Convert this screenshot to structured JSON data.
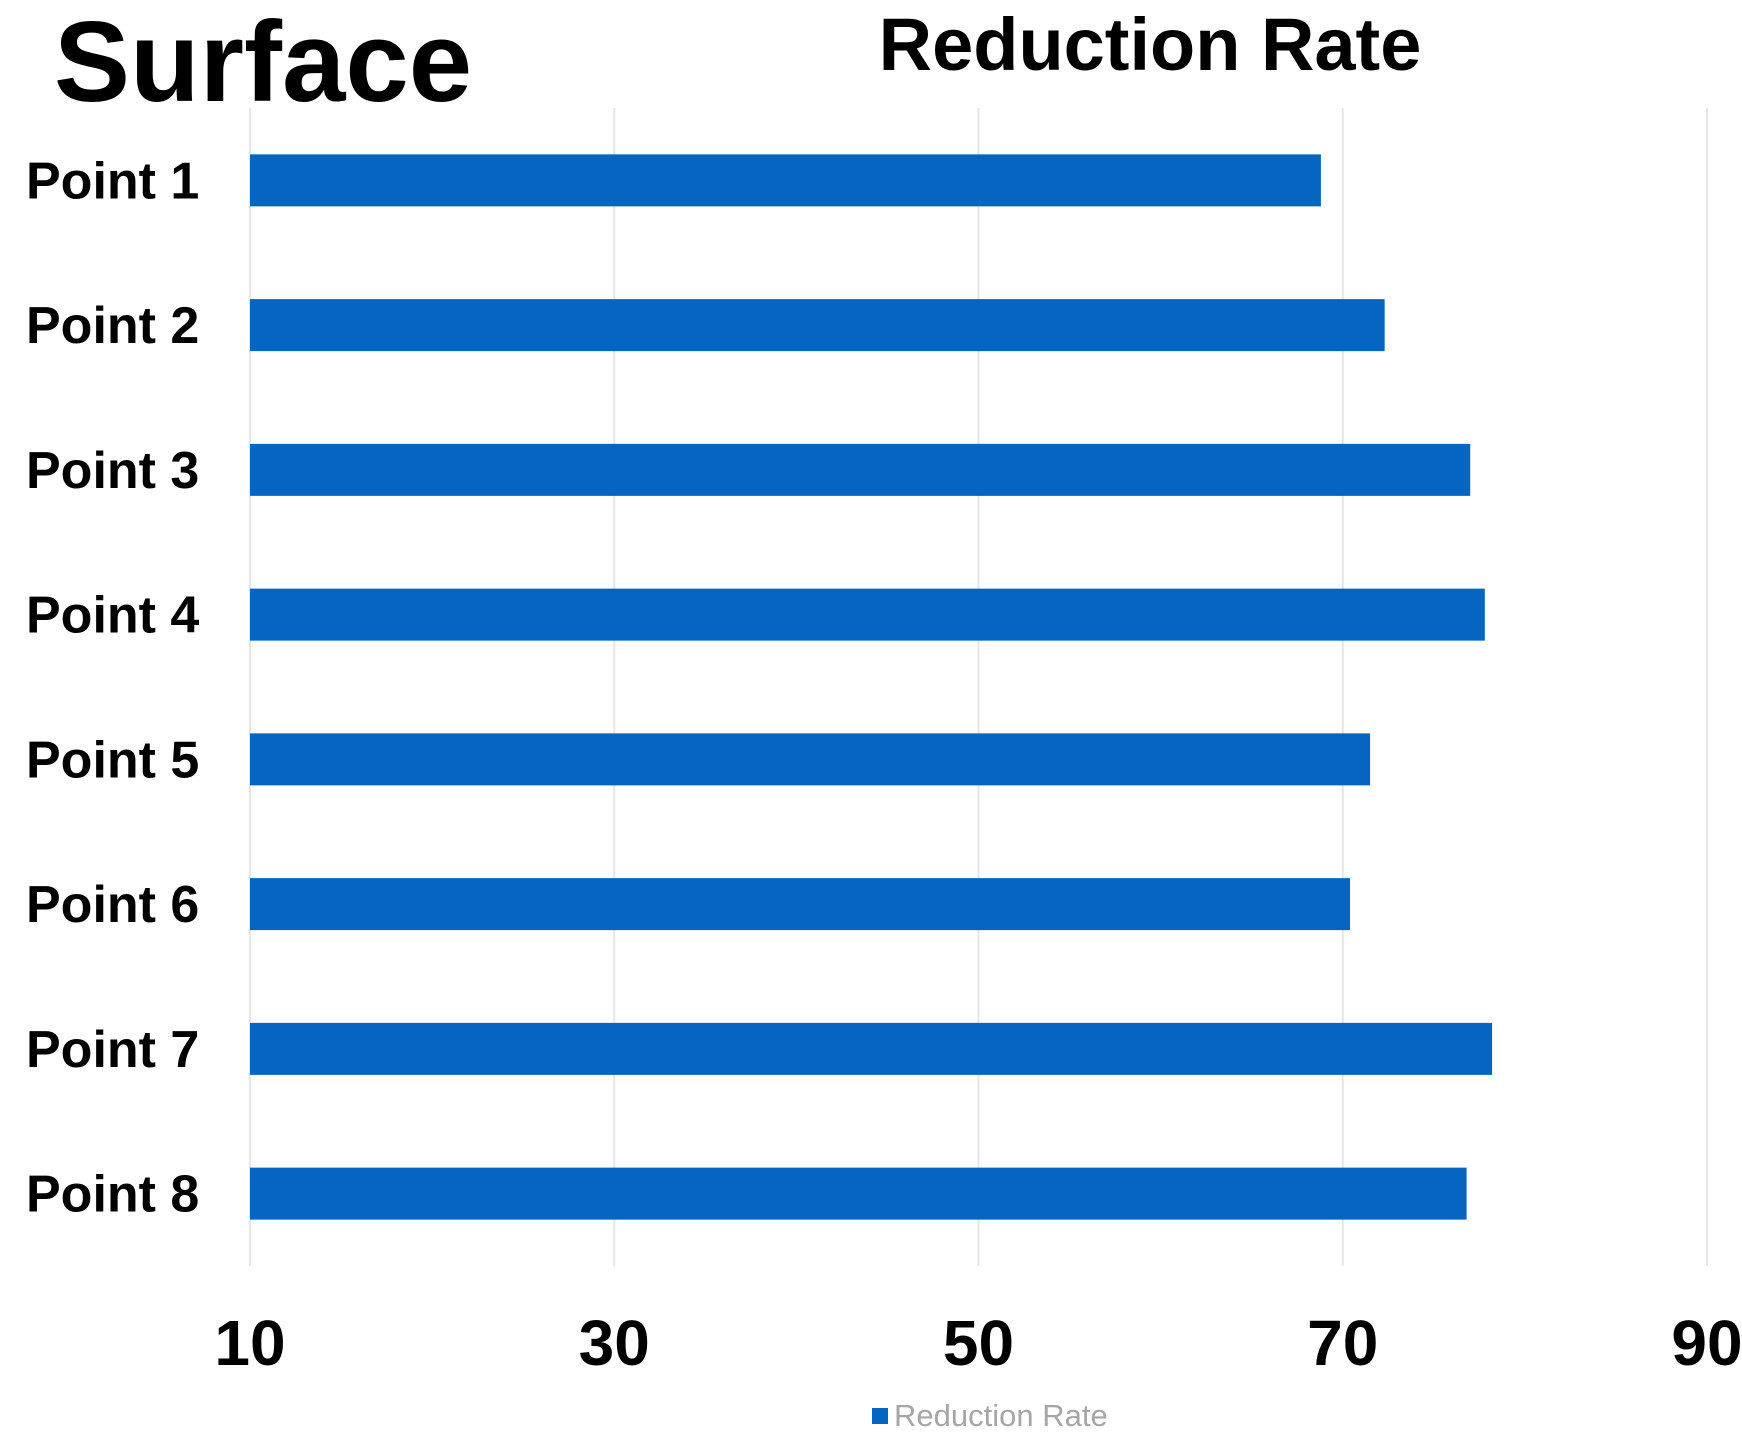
{
  "corner_label": "Surface",
  "colors": {
    "bar": "#0565c0",
    "grid": "#e6e6e6",
    "text": "#000000",
    "legend_text": "#a6a6a6"
  },
  "chart_data": {
    "type": "bar",
    "orientation": "horizontal",
    "title": "Reduction Rate",
    "categories": [
      "Point 1",
      "Point 2",
      "Point 3",
      "Point 4",
      "Point 5",
      "Point 6",
      "Point 7",
      "Point 8"
    ],
    "series": [
      {
        "name": "Reduction Rate",
        "values": [
          68.8,
          72.3,
          77.0,
          77.8,
          71.5,
          70.4,
          78.2,
          76.8
        ]
      }
    ],
    "xlim": [
      10,
      90
    ],
    "xticks": [
      "10",
      "30",
      "50",
      "70",
      "90"
    ],
    "grid": true,
    "legend": "bottom"
  }
}
